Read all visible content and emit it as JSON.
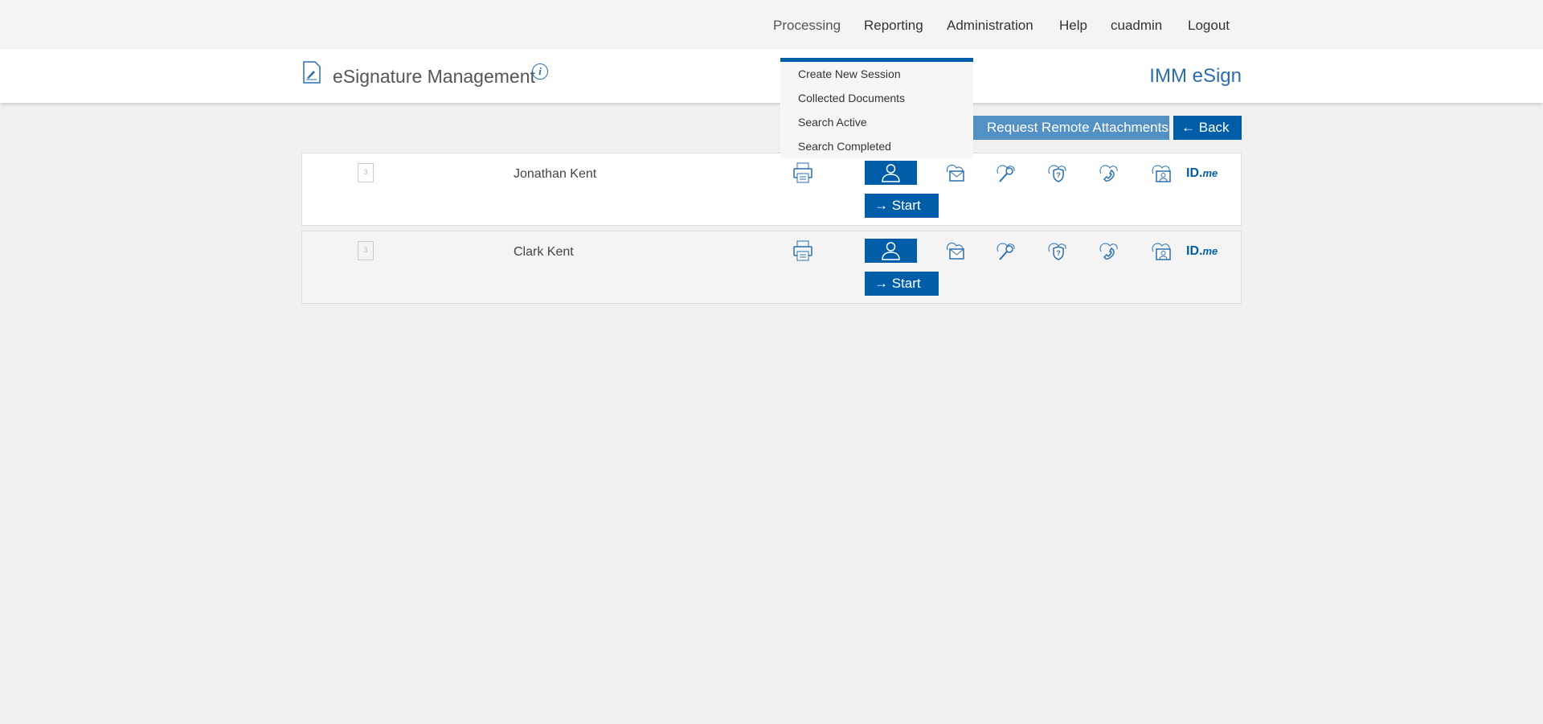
{
  "nav": {
    "items": [
      "Processing",
      "Reporting",
      "Administration",
      "Help",
      "cuadmin",
      "Logout"
    ]
  },
  "header": {
    "title": "eSignature Management",
    "brand": "IMM eSign",
    "info_icon": "i"
  },
  "dropdown": {
    "items": [
      "Create New Session",
      "Collected Documents",
      "Search Active",
      "Search Completed"
    ]
  },
  "toolbar": {
    "request_label": "Request Remote Attachments",
    "back_label": "Back",
    "back_arrow": "←"
  },
  "rows": [
    {
      "doc_count": "3",
      "name": "Jonathan Kent",
      "start_label": "Start",
      "start_arrow": "→",
      "idme_id": "ID.",
      "idme_me": "me"
    },
    {
      "doc_count": "3",
      "name": "Clark Kent",
      "start_label": "Start",
      "start_arrow": "→",
      "idme_id": "ID.",
      "idme_me": "me"
    }
  ],
  "colors": {
    "primary": "#005ea8",
    "request_button": "#5391c4",
    "brand": "#2a6eb0"
  }
}
